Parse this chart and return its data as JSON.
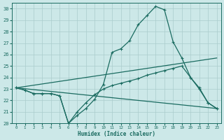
{
  "xlabel": "Humidex (Indice chaleur)",
  "bg_color": "#cce8e8",
  "grid_color": "#aacccc",
  "line_color": "#1a6b60",
  "xlim": [
    -0.5,
    23.5
  ],
  "ylim": [
    20,
    30.5
  ],
  "yticks": [
    20,
    21,
    22,
    23,
    24,
    25,
    26,
    27,
    28,
    29,
    30
  ],
  "xticks": [
    0,
    1,
    2,
    3,
    4,
    5,
    6,
    7,
    8,
    9,
    10,
    11,
    12,
    13,
    14,
    15,
    16,
    17,
    18,
    19,
    20,
    21,
    22,
    23
  ],
  "line1_x": [
    0,
    1,
    2,
    3,
    4,
    5,
    6,
    7,
    8,
    9,
    10,
    11,
    12,
    13,
    14,
    15,
    16,
    17,
    18,
    19,
    20,
    21,
    22,
    23
  ],
  "line1_y": [
    23.1,
    22.9,
    22.6,
    22.6,
    22.6,
    22.4,
    20.0,
    20.7,
    21.3,
    22.1,
    23.4,
    26.2,
    26.5,
    27.2,
    28.6,
    29.4,
    30.2,
    29.9,
    27.1,
    25.7,
    24.0,
    23.0,
    21.8,
    21.3
  ],
  "line2_x": [
    0,
    1,
    2,
    3,
    4,
    5,
    6,
    7,
    8,
    9,
    10,
    11,
    12,
    13,
    14,
    15,
    16,
    17,
    18,
    19,
    20,
    21,
    22,
    23
  ],
  "line2_y": [
    23.1,
    22.9,
    22.6,
    22.6,
    22.6,
    22.4,
    20.0,
    21.0,
    21.8,
    22.5,
    23.0,
    23.3,
    23.5,
    23.7,
    23.9,
    24.2,
    24.4,
    24.6,
    24.8,
    25.0,
    24.0,
    23.1,
    21.8,
    21.3
  ],
  "line3_x": [
    0,
    23
  ],
  "line3_y": [
    23.1,
    25.7
  ],
  "line4_x": [
    0,
    23
  ],
  "line4_y": [
    23.1,
    21.3
  ]
}
